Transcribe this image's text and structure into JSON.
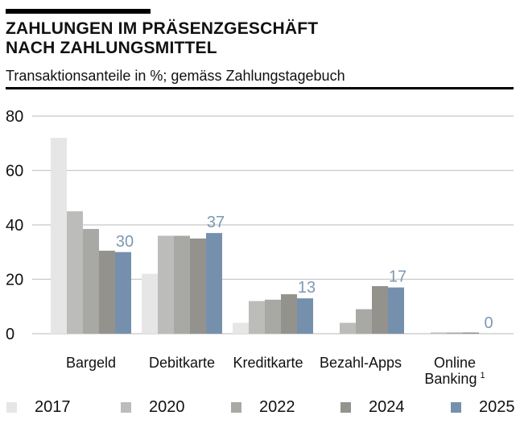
{
  "header": {
    "title_line1": "ZAHLUNGEN IM PRÄSENZGESCHÄFT",
    "title_line2": "NACH ZAHLUNGSMITTEL",
    "subtitle": "Transaktionsanteile in %; gemäss Zahlungstagebuch"
  },
  "chart_data": {
    "type": "bar",
    "title": "ZAHLUNGEN IM PRÄSENZGESCHÄFT NACH ZAHLUNGSMITTEL",
    "subtitle": "Transaktionsanteile in %; gemäss Zahlungstagebuch",
    "xlabel": "",
    "ylabel": "",
    "ylim": [
      0,
      80
    ],
    "yticks": [
      0,
      20,
      40,
      60,
      80
    ],
    "grid": true,
    "legend_position": "bottom",
    "categories": [
      "Bargeld",
      "Debitkarte",
      "Kreditkarte",
      "Bezahl-Apps",
      "Online Banking"
    ],
    "category_labels": [
      [
        "Bargeld"
      ],
      [
        "Debitkarte"
      ],
      [
        "Kreditkarte"
      ],
      [
        "Bezahl-Apps"
      ],
      [
        "Online",
        "Banking"
      ]
    ],
    "footnote_marks": [
      "",
      "",
      "",
      "",
      "1"
    ],
    "series": [
      {
        "name": "2017",
        "color": "#e6e6e6",
        "values": [
          72,
          22,
          4,
          0,
          0
        ]
      },
      {
        "name": "2020",
        "color": "#bcbcba",
        "values": [
          45,
          36,
          12,
          4,
          0.3
        ]
      },
      {
        "name": "2022",
        "color": "#a8a8a4",
        "values": [
          38.5,
          36,
          12.5,
          9,
          0.3
        ]
      },
      {
        "name": "2024",
        "color": "#93928d",
        "values": [
          30.5,
          35,
          14.5,
          17.5,
          0.3
        ]
      },
      {
        "name": "2025",
        "color": "#7590ad",
        "values": [
          30,
          37,
          13,
          17,
          0
        ]
      }
    ],
    "data_labels": {
      "series": "2025",
      "values": [
        "30",
        "37",
        "13",
        "17",
        "0"
      ],
      "color": "#7f98b2"
    }
  }
}
